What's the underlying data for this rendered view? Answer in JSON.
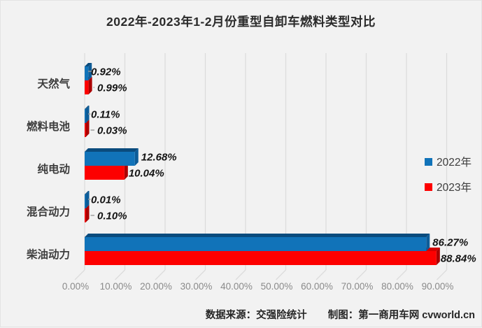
{
  "title": "2022年-2023年1-2月份重型自卸车燃料类型对比",
  "footer": {
    "source": "数据来源：交强险统计",
    "credit": "制图：第一商用车网 cvworld.cn"
  },
  "colors": {
    "series_2022": "#1173b9",
    "series_2022_top": "#0a4b7d",
    "series_2022_side": "#0d5c98",
    "series_2023": "#fd0000",
    "series_2023_top": "#d40000",
    "series_2023_side": "#ab0000",
    "gridline": "#dcdcdc",
    "leader_line": "#9b9b9b",
    "axis_text": "#8a8a8a",
    "background": "#f2f2f2"
  },
  "chart_data": {
    "type": "bar",
    "orientation": "horizontal",
    "style": "3d",
    "title": "2022年-2023年1-2月份重型自卸车燃料类型对比",
    "categories": [
      "天然气",
      "燃料电池",
      "纯电动",
      "混合动力",
      "柴油动力"
    ],
    "series": [
      {
        "name": "2022年",
        "color": "#1173b9",
        "values": [
          0.92,
          0.11,
          12.68,
          0.01,
          86.27
        ],
        "labels": [
          "0.92%",
          "0.11%",
          "12.68%",
          "0.01%",
          "86.27%"
        ]
      },
      {
        "name": "2023年",
        "color": "#fd0000",
        "values": [
          0.99,
          0.03,
          10.04,
          0.1,
          88.84
        ],
        "labels": [
          "0.99%",
          "0.03%",
          "10.04%",
          "0.10%",
          "88.84%"
        ]
      }
    ],
    "x_ticks": [
      "0.00%",
      "10.00%",
      "20.00%",
      "30.00%",
      "40.00%",
      "50.00%",
      "60.00%",
      "70.00%",
      "80.00%",
      "90.00%"
    ],
    "xlim": [
      0,
      90
    ],
    "xlabel": "",
    "ylabel": "",
    "grid": true,
    "legend_position": "right"
  }
}
